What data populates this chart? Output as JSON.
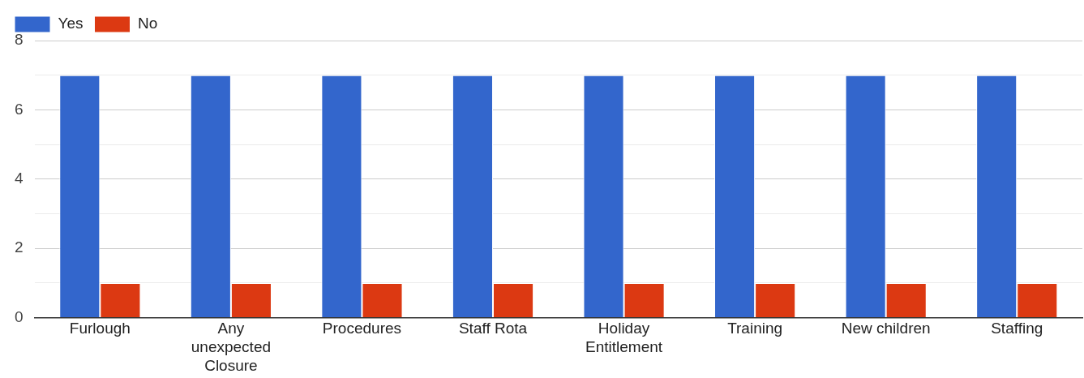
{
  "chart_data": {
    "type": "bar",
    "categories": [
      "Furlough",
      "Any unexpected Closure",
      "Procedures",
      "Staff Rota",
      "Holiday Entitlement",
      "Training",
      "New children",
      "Staffing"
    ],
    "series": [
      {
        "name": "Yes",
        "color": "#3366cc",
        "values": [
          7,
          7,
          7,
          7,
          7,
          7,
          7,
          7
        ]
      },
      {
        "name": "No",
        "color": "#dc3912",
        "values": [
          1,
          1,
          1,
          1,
          1,
          1,
          1,
          1
        ]
      }
    ],
    "ylim": [
      0,
      8
    ],
    "yticks": [
      0,
      {
        "value": 1,
        "label": null
      },
      2,
      {
        "value": 3,
        "label": null
      },
      4,
      {
        "value": 5,
        "label": null
      },
      6,
      {
        "value": 7,
        "label": null
      },
      8
    ],
    "grid": "y",
    "legend": "top left"
  }
}
